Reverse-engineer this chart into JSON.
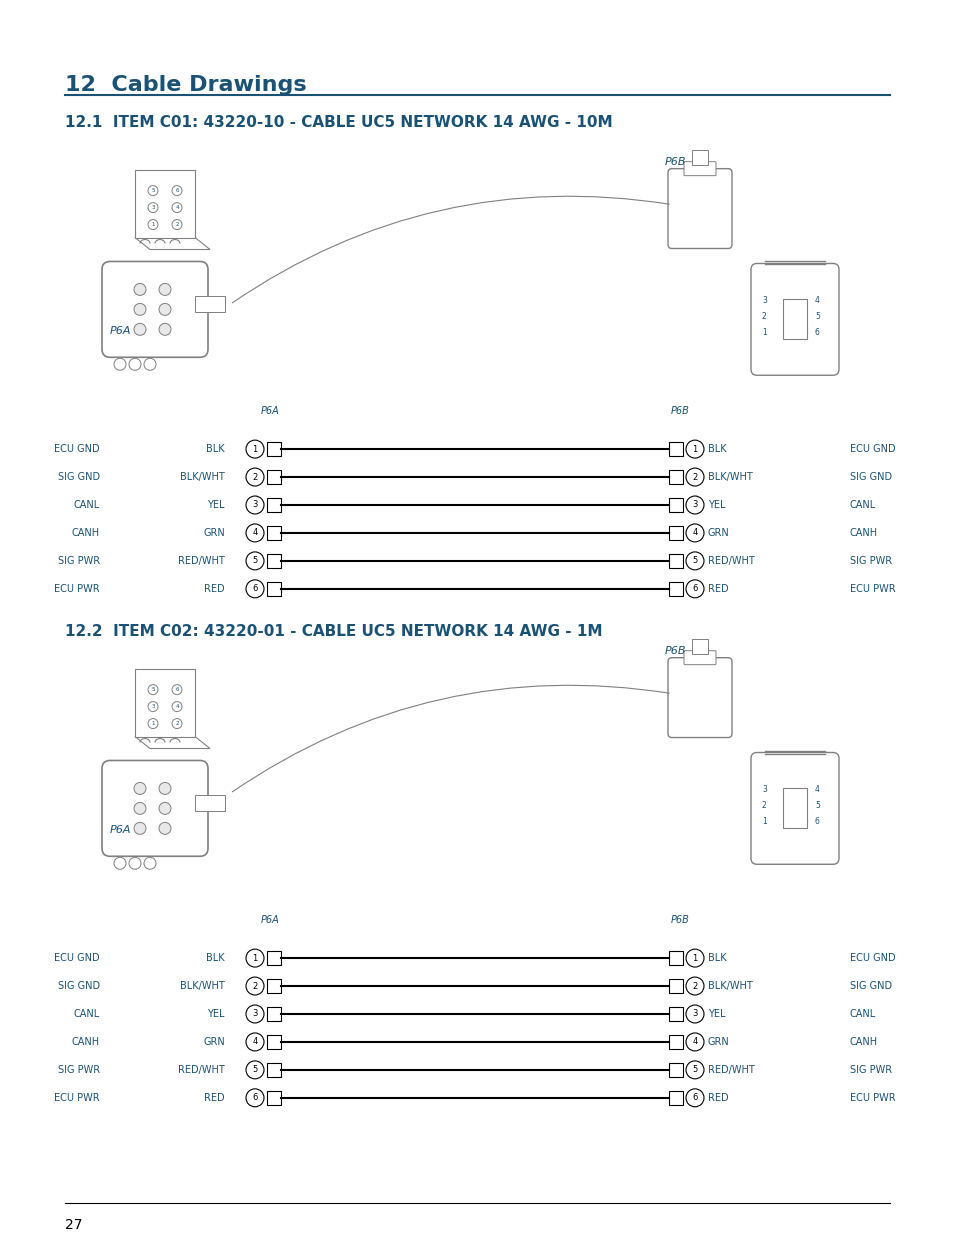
{
  "page_title": "12  Cable Drawings",
  "title_color": "#1a5276",
  "line_color": "#1a5276",
  "section1_title": "12.1  ITEM C01: 43220-10 - CABLE UC5 NETWORK 14 AWG - 10M",
  "section2_title": "12.2  ITEM C02: 43220-01 - CABLE UC5 NETWORK 14 AWG - 1M",
  "connector_labels_left": [
    "P6A",
    "P6A"
  ],
  "connector_labels_right": [
    "P6B",
    "P6B"
  ],
  "wiring_rows": [
    {
      "left_func": "ECU GND",
      "left_wire": "BLK",
      "num": "1",
      "right_wire": "BLK",
      "right_func": "ECU GND"
    },
    {
      "left_func": "SIG GND",
      "left_wire": "BLK/WHT",
      "num": "2",
      "right_wire": "BLK/WHT",
      "right_func": "SIG GND"
    },
    {
      "left_func": "CANL",
      "left_wire": "YEL",
      "num": "3",
      "right_wire": "YEL",
      "right_func": "CANL"
    },
    {
      "left_func": "CANH",
      "left_wire": "GRN",
      "num": "4",
      "right_wire": "GRN",
      "right_func": "CANH"
    },
    {
      "left_func": "SIG PWR",
      "left_wire": "RED/WHT",
      "num": "5",
      "right_wire": "RED/WHT",
      "right_func": "SIG PWR"
    },
    {
      "left_func": "ECU PWR",
      "left_wire": "RED",
      "num": "6",
      "right_wire": "RED",
      "right_func": "ECU PWR"
    }
  ],
  "page_number": "27",
  "bg_color": "#ffffff",
  "text_color": "#1a5276",
  "diagram_color": "#808080",
  "wire_color": "#000000"
}
